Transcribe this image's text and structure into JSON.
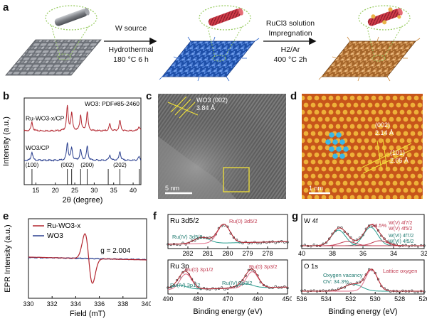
{
  "panel_labels": {
    "a": "a",
    "b": "b",
    "c": "c",
    "d": "d",
    "e": "e",
    "f": "f",
    "g": "g"
  },
  "scheme": {
    "step1_line1": "W source",
    "step1_line2": "Hydrothermal",
    "step1_line3": "180 °C  6 h",
    "step2_line1": "RuCl3 solution",
    "step2_line2": "Impregnation",
    "step2_line3": "H2/Ar",
    "step2_line4": "400 °C  2h",
    "colors": {
      "cp": "#8a8d92",
      "wo3": "#2a63c9",
      "ru": "#c9873b",
      "rod": "#d8404e"
    }
  },
  "panel_c": {
    "annotation_line1": "WO3 (002)",
    "annotation_line2": "3.84 Å",
    "scale": "5 nm"
  },
  "panel_d": {
    "ann1_line1": "(002)",
    "ann1_line2": "2.14 Å",
    "ann2_line1": "(101)",
    "ann2_line2": "2.05 Å",
    "scale": "1 nm"
  },
  "chart_data": [
    {
      "id": "b",
      "type": "line",
      "title": "",
      "xlabel": "2θ (degree)",
      "ylabel": "Intensity (a.u.)",
      "xlim": [
        12,
        42
      ],
      "xticks": [
        15,
        20,
        25,
        30,
        35,
        40
      ],
      "series": [
        {
          "name": "Ru-WO3-x/CP",
          "color": "#b3262f",
          "offset": 0.62,
          "peaks": [
            [
              14.0,
              0.1
            ],
            [
              23.1,
              0.28
            ],
            [
              24.2,
              0.2
            ],
            [
              26.5,
              0.18
            ],
            [
              28.2,
              0.22
            ],
            [
              34.0,
              0.08
            ],
            [
              36.6,
              0.12
            ],
            [
              41.5,
              0.05
            ]
          ]
        },
        {
          "name": "WO3/CP",
          "color": "#2a3f8f",
          "offset": 0.28,
          "peaks": [
            [
              14.0,
              0.1
            ],
            [
              23.1,
              0.2
            ],
            [
              24.2,
              0.14
            ],
            [
              26.5,
              0.12
            ],
            [
              28.2,
              0.16
            ],
            [
              34.0,
              0.06
            ],
            [
              36.6,
              0.1
            ],
            [
              41.5,
              0.04
            ]
          ]
        }
      ],
      "reference": "WO3: PDF#85-2460",
      "ref_lines": [
        14.0,
        23.1,
        24.2,
        26.5,
        28.2,
        33.6,
        36.6,
        41.6
      ],
      "ref_labels": [
        {
          "text": "(100)",
          "x": 14.0
        },
        {
          "text": "(002)",
          "x": 23.1
        },
        {
          "text": "(200)",
          "x": 28.2
        },
        {
          "text": "(202)",
          "x": 36.6
        }
      ]
    },
    {
      "id": "e",
      "type": "line",
      "xlabel": "Field (mT)",
      "ylabel": "EPR Intensity (a.u.)",
      "xlim": [
        330,
        340
      ],
      "xticks": [
        330,
        332,
        334,
        336,
        338,
        340
      ],
      "series": [
        {
          "name": "Ru-WO3-x",
          "color": "#b3262f"
        },
        {
          "name": "WO3",
          "color": "#2a3f8f"
        }
      ],
      "annotation": "g = 2.004",
      "signal_center": 335.1,
      "signal_amplitude": 0.9
    },
    {
      "id": "f_top",
      "type": "line",
      "title": "Ru 3d5/2",
      "xlim": [
        283,
        277
      ],
      "xticks": [
        282,
        281,
        280,
        279,
        278
      ],
      "peaks": [
        {
          "label": "Ru(0) 3d5/2",
          "center": 280.2
        },
        {
          "label": "Ru(IV) 3d5/2",
          "center": 281.3
        }
      ]
    },
    {
      "id": "f_bottom",
      "type": "line",
      "title": "Ru 3p",
      "xlabel": "Binding energy (eV)",
      "xlim": [
        490,
        450
      ],
      "xticks": [
        490,
        480,
        470,
        460,
        450
      ],
      "peaks": [
        {
          "label": "Ru(0) 3p1/2",
          "center": 484.0
        },
        {
          "label": "Ru(0) 3p3/2",
          "center": 461.8
        },
        {
          "label": "Ru(IV) 3p1/2",
          "center": 486.3
        },
        {
          "label": "Ru(IV) 3p3/2",
          "center": 464.2
        }
      ]
    },
    {
      "id": "g_top",
      "type": "line",
      "title": "W 4f",
      "xlim": [
        40,
        32
      ],
      "xticks": [
        40,
        38,
        36,
        34,
        32
      ],
      "annotations": [
        "24.5%",
        "W(V) 4f7/2",
        "W(V) 4f5/2",
        "W(VI) 4f7/2",
        "W(VI) 4f5/2"
      ]
    },
    {
      "id": "g_bottom",
      "type": "line",
      "title": "O 1s",
      "xlabel": "Binding energy (eV)",
      "xlim": [
        536,
        526
      ],
      "xticks": [
        536,
        534,
        532,
        530,
        528,
        526
      ],
      "annotations": [
        "Oxygen vacancy",
        "OV: 34.3%",
        "Lattice oxygen"
      ]
    }
  ],
  "ylabels_cd": {
    "b_legend1": "Ru-WO3-x/CP",
    "b_legend2": "WO3/CP"
  }
}
